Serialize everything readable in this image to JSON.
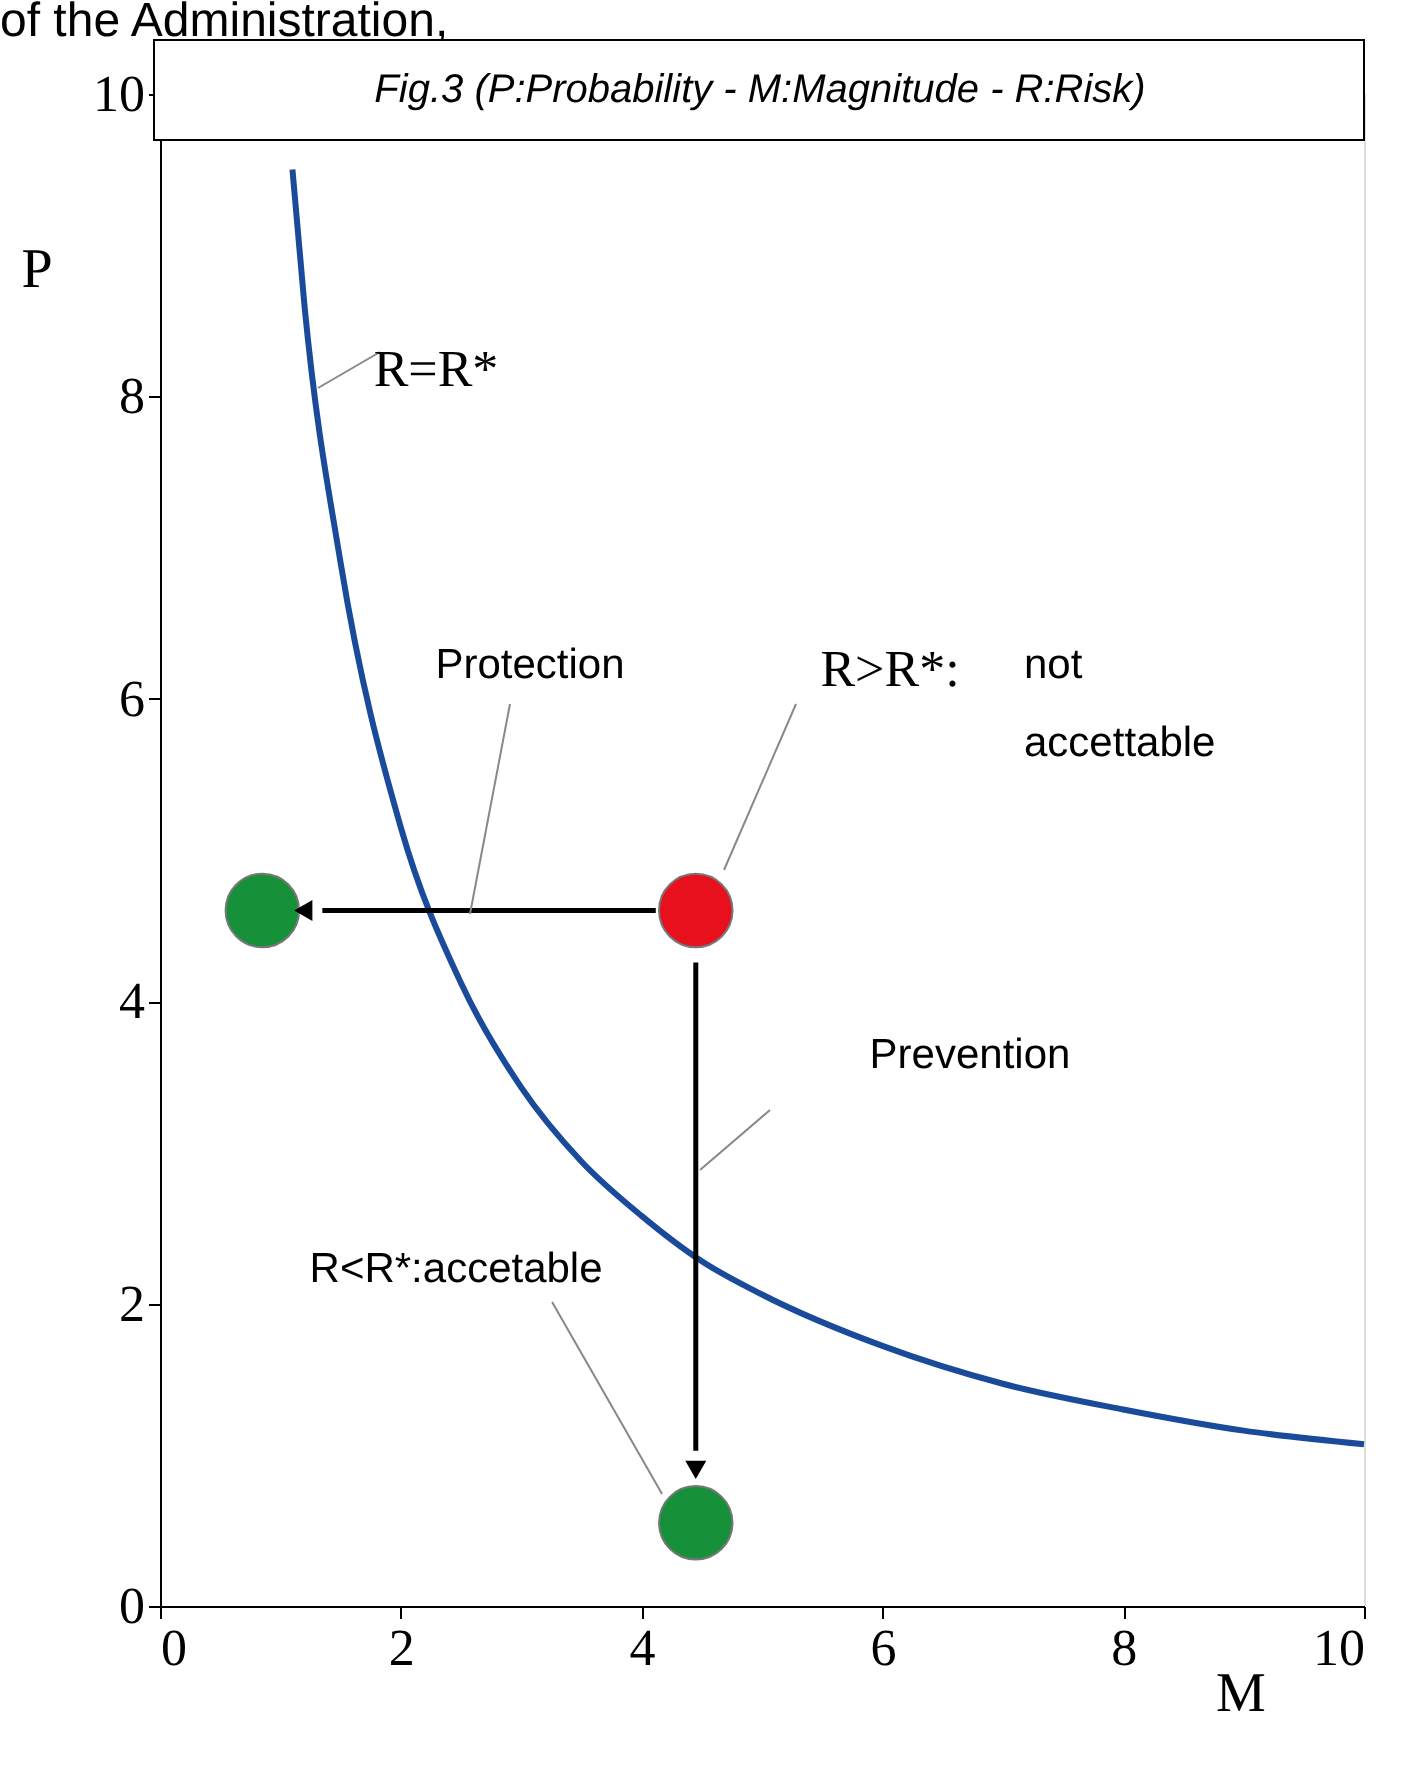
{
  "chart_data": {
    "type": "line",
    "title": "Fig.3 (P:Probability - M:Magnitude - R:Risk)",
    "xlabel": "M",
    "ylabel": "P",
    "xlim": [
      0,
      10
    ],
    "ylim": [
      0,
      10
    ],
    "xticks": [
      0,
      2,
      4,
      6,
      8,
      10
    ],
    "yticks": [
      0,
      2,
      4,
      6,
      8,
      10
    ],
    "grid": false,
    "series": [
      {
        "type": "line",
        "color": "#1a4a9a",
        "x": [
          1.1,
          1.2,
          1.5,
          2,
          2.5,
          3,
          3.5,
          4,
          4.5,
          5,
          6,
          7,
          8,
          9,
          10
        ],
        "values": [
          9.5,
          8.6,
          6.9,
          5.15,
          4.12,
          3.43,
          2.94,
          2.58,
          2.28,
          2.06,
          1.72,
          1.47,
          1.3,
          1.16,
          1.07
        ]
      },
      {
        "type": "scatter",
        "color": "#e8101c",
        "marker": "circle",
        "x": [
          4.45
        ],
        "values": [
          4.6
        ]
      },
      {
        "type": "scatter",
        "color": "#16913a",
        "marker": "circle",
        "x": [
          0.85,
          4.45
        ],
        "values": [
          4.6,
          0.55
        ]
      }
    ],
    "annotations": [
      "of the Administration,",
      "R=R*",
      "Protection",
      "R>R*:",
      "not accettable",
      "Prevention",
      {
        "text": "R<R*:accetable",
        "x": 4.17,
        "y": 0.74
      }
    ]
  }
}
